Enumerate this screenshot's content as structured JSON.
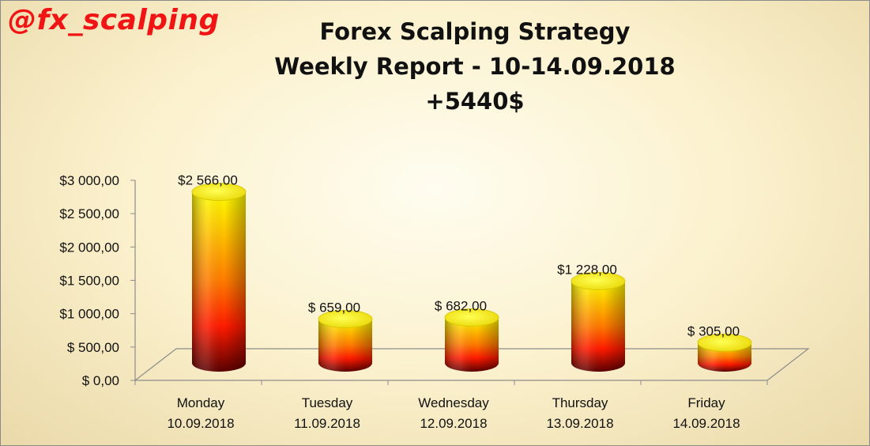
{
  "watermark": "@fx_scalping",
  "chart_data": {
    "type": "bar",
    "title": [
      "Forex Scalping Strategy",
      "Weekly Report - 10-14.09.2018",
      "+5440$"
    ],
    "categories": [
      [
        "Monday",
        "10.09.2018"
      ],
      [
        "Tuesday",
        "11.09.2018"
      ],
      [
        "Wednesday",
        "12.09.2018"
      ],
      [
        "Thursday",
        "13.09.2018"
      ],
      [
        "Friday",
        "14.09.2018"
      ]
    ],
    "values": [
      2566,
      659,
      682,
      1228,
      305
    ],
    "data_labels": [
      "$2 566,00",
      "$ 659,00",
      "$ 682,00",
      "$1 228,00",
      "$ 305,00"
    ],
    "ylim": [
      0,
      3000
    ],
    "yticks": [
      0,
      500,
      1000,
      1500,
      2000,
      2500,
      3000
    ],
    "ytick_labels": [
      "$ 0,00",
      "$ 500,00",
      "$1 000,00",
      "$1 500,00",
      "$2 000,00",
      "$2 500,00",
      "$3 000,00"
    ],
    "bar_shape": "cylinder",
    "grid": false,
    "legend": "none",
    "colors": {
      "bar_top": "#ffff00",
      "bar_mid": "#ff1a00",
      "bar_bottom": "#5a0000",
      "watermark": "#f01414"
    }
  }
}
